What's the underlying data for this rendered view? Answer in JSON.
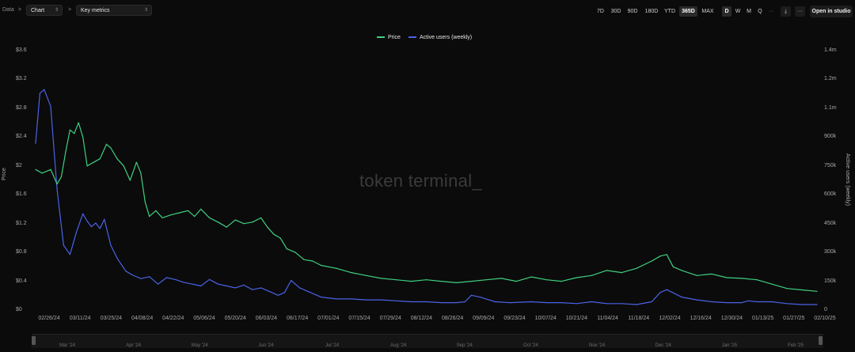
{
  "breadcrumb": {
    "root": "Data",
    "sep1": ">",
    "sep2": ">"
  },
  "selectors": {
    "chart_type": "Chart",
    "metric": "Key metrics"
  },
  "ranges": [
    "7D",
    "30D",
    "90D",
    "180D",
    "YTD",
    "365D",
    "MAX"
  ],
  "active_range": "365D",
  "granularity": [
    "D",
    "W",
    "M",
    "Q"
  ],
  "active_granularity": "D",
  "more_label": "···",
  "download_icon": "download-icon",
  "overflow_label": "···",
  "open_studio_label": "Open in studio",
  "watermark": "token terminal_",
  "colors": {
    "price": "#3ecf7f",
    "users": "#4a63e6",
    "background": "#0b0b0b"
  },
  "chart_data": {
    "type": "line",
    "title": "",
    "legend_position": "top-center",
    "grid": false,
    "x_tick_labels": [
      "02/26/24",
      "03/11/24",
      "03/25/24",
      "04/08/24",
      "04/22/24",
      "05/06/24",
      "05/20/24",
      "06/03/24",
      "06/17/24",
      "07/01/24",
      "07/15/24",
      "07/29/24",
      "08/12/24",
      "08/26/24",
      "09/09/24",
      "09/23/24",
      "10/07/24",
      "10/21/24",
      "11/04/24",
      "11/18/24",
      "12/02/24",
      "12/16/24",
      "12/30/24",
      "01/13/25",
      "01/27/25",
      "02/10/25"
    ],
    "y_left": {
      "label": "Price",
      "ticks": [
        "$0",
        "$0.4",
        "$0.8",
        "$1.2",
        "$1.6",
        "$2",
        "$2.4",
        "$2.8",
        "$3.2",
        "$3.6"
      ],
      "range": [
        0,
        3.6
      ]
    },
    "y_right": {
      "label": "Active users (weekly)",
      "ticks": [
        "0",
        "150k",
        "300k",
        "450k",
        "600k",
        "750k",
        "900k",
        "1.1m",
        "1.2m",
        "1.4m"
      ],
      "range": [
        0,
        1400000
      ]
    },
    "scrubber_labels": [
      "Mar '24",
      "Apr '24",
      "May '24",
      "Jun '24",
      "Jul '24",
      "Aug '24",
      "Sep '24",
      "Oct '24",
      "Nov '24",
      "Dec '24",
      "Jan '25",
      "Feb '25"
    ],
    "series": [
      {
        "name": "Price",
        "axis": "left",
        "x": [
          "2024-02-19",
          "2024-02-22",
          "2024-02-26",
          "2024-02-29",
          "2024-03-02",
          "2024-03-04",
          "2024-03-06",
          "2024-03-08",
          "2024-03-10",
          "2024-03-12",
          "2024-03-14",
          "2024-03-17",
          "2024-03-20",
          "2024-03-23",
          "2024-03-25",
          "2024-03-28",
          "2024-03-31",
          "2024-04-03",
          "2024-04-06",
          "2024-04-08",
          "2024-04-10",
          "2024-04-12",
          "2024-04-15",
          "2024-04-18",
          "2024-04-22",
          "2024-04-26",
          "2024-04-30",
          "2024-05-03",
          "2024-05-06",
          "2024-05-10",
          "2024-05-14",
          "2024-05-18",
          "2024-05-22",
          "2024-05-26",
          "2024-05-30",
          "2024-06-03",
          "2024-06-06",
          "2024-06-09",
          "2024-06-12",
          "2024-06-15",
          "2024-06-19",
          "2024-06-23",
          "2024-06-27",
          "2024-07-01",
          "2024-07-08",
          "2024-07-15",
          "2024-07-22",
          "2024-07-29",
          "2024-08-05",
          "2024-08-12",
          "2024-08-19",
          "2024-08-26",
          "2024-09-02",
          "2024-09-09",
          "2024-09-16",
          "2024-09-23",
          "2024-09-30",
          "2024-10-07",
          "2024-10-14",
          "2024-10-21",
          "2024-10-28",
          "2024-11-04",
          "2024-11-11",
          "2024-11-18",
          "2024-11-25",
          "2024-12-02",
          "2024-12-06",
          "2024-12-09",
          "2024-12-12",
          "2024-12-16",
          "2024-12-23",
          "2024-12-30",
          "2025-01-06",
          "2025-01-13",
          "2025-01-20",
          "2025-01-27",
          "2025-02-03",
          "2025-02-10",
          "2025-02-17"
        ],
        "y": [
          1.95,
          1.9,
          1.95,
          1.75,
          1.85,
          2.2,
          2.5,
          2.45,
          2.6,
          2.4,
          2.0,
          2.05,
          2.1,
          2.3,
          2.25,
          2.1,
          2.0,
          1.8,
          2.05,
          1.9,
          1.5,
          1.3,
          1.38,
          1.28,
          1.32,
          1.35,
          1.38,
          1.3,
          1.4,
          1.28,
          1.22,
          1.15,
          1.25,
          1.2,
          1.22,
          1.28,
          1.15,
          1.05,
          1.0,
          0.85,
          0.8,
          0.7,
          0.68,
          0.62,
          0.58,
          0.52,
          0.48,
          0.44,
          0.42,
          0.4,
          0.42,
          0.4,
          0.38,
          0.4,
          0.42,
          0.44,
          0.4,
          0.46,
          0.42,
          0.4,
          0.45,
          0.48,
          0.55,
          0.52,
          0.58,
          0.68,
          0.75,
          0.77,
          0.6,
          0.55,
          0.48,
          0.5,
          0.45,
          0.44,
          0.42,
          0.36,
          0.3,
          0.28,
          0.26
        ]
      },
      {
        "name": "Active users (weekly)",
        "axis": "right",
        "x": [
          "2024-02-19",
          "2024-02-21",
          "2024-02-23",
          "2024-02-26",
          "2024-02-29",
          "2024-03-03",
          "2024-03-06",
          "2024-03-09",
          "2024-03-12",
          "2024-03-14",
          "2024-03-16",
          "2024-03-18",
          "2024-03-20",
          "2024-03-22",
          "2024-03-25",
          "2024-03-28",
          "2024-04-01",
          "2024-04-04",
          "2024-04-08",
          "2024-04-12",
          "2024-04-16",
          "2024-04-20",
          "2024-04-24",
          "2024-04-28",
          "2024-05-02",
          "2024-05-06",
          "2024-05-10",
          "2024-05-14",
          "2024-05-18",
          "2024-05-22",
          "2024-05-26",
          "2024-05-30",
          "2024-06-03",
          "2024-06-07",
          "2024-06-11",
          "2024-06-14",
          "2024-06-17",
          "2024-06-21",
          "2024-06-25",
          "2024-07-01",
          "2024-07-08",
          "2024-07-15",
          "2024-07-22",
          "2024-07-29",
          "2024-08-05",
          "2024-08-12",
          "2024-08-19",
          "2024-08-26",
          "2024-09-02",
          "2024-09-06",
          "2024-09-09",
          "2024-09-13",
          "2024-09-20",
          "2024-09-27",
          "2024-10-07",
          "2024-10-14",
          "2024-10-21",
          "2024-10-28",
          "2024-11-04",
          "2024-11-11",
          "2024-11-18",
          "2024-11-25",
          "2024-12-02",
          "2024-12-06",
          "2024-12-09",
          "2024-12-16",
          "2024-12-23",
          "2024-12-30",
          "2025-01-06",
          "2025-01-13",
          "2025-01-16",
          "2025-01-20",
          "2025-01-27",
          "2025-02-03",
          "2025-02-10",
          "2025-02-17"
        ],
        "y": [
          900000,
          1170000,
          1190000,
          1100000,
          650000,
          350000,
          300000,
          420000,
          520000,
          480000,
          450000,
          470000,
          440000,
          490000,
          350000,
          280000,
          210000,
          190000,
          170000,
          180000,
          140000,
          175000,
          165000,
          150000,
          140000,
          130000,
          165000,
          140000,
          130000,
          120000,
          135000,
          110000,
          120000,
          100000,
          80000,
          95000,
          160000,
          120000,
          100000,
          70000,
          60000,
          60000,
          55000,
          55000,
          50000,
          45000,
          45000,
          40000,
          40000,
          45000,
          80000,
          70000,
          45000,
          40000,
          45000,
          40000,
          40000,
          35000,
          45000,
          35000,
          35000,
          30000,
          45000,
          95000,
          110000,
          70000,
          55000,
          45000,
          40000,
          40000,
          50000,
          45000,
          45000,
          35000,
          30000,
          30000
        ]
      }
    ]
  }
}
